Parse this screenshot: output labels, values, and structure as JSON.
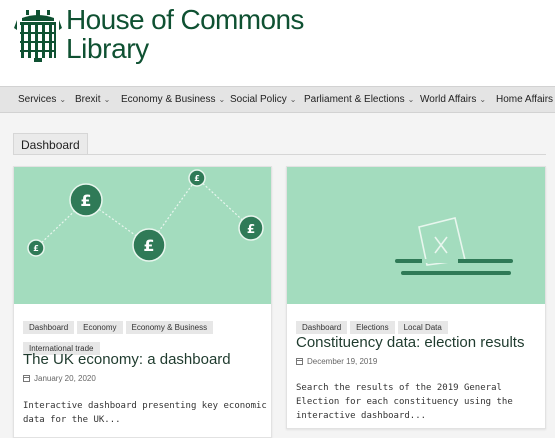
{
  "header": {
    "logo_line1": "House of Commons",
    "logo_line2": "Library",
    "brand_color": "#0f5132"
  },
  "nav": {
    "items": [
      "Services",
      "Brexit",
      "Economy & Business",
      "Social Policy",
      "Parliament & Elections",
      "World Affairs",
      "Home Affairs"
    ]
  },
  "section_tag": "Dashboard",
  "cards": [
    {
      "image_icon": "line-chart-pound-icon",
      "tags": [
        "Dashboard",
        "Economy",
        "Economy & Business",
        "International trade"
      ],
      "title": "The UK economy: a dashboard",
      "date": "January 20, 2020",
      "description": "Interactive dashboard presenting key economic data for the UK..."
    },
    {
      "image_icon": "ballot-box-icon",
      "tags": [
        "Dashboard",
        "Elections",
        "Local Data"
      ],
      "title": "Constituency data: election results",
      "date": "December 19, 2019",
      "description": "Search the results of the 2019 General Election for each constituency using the interactive dashboard..."
    }
  ],
  "colors": {
    "card_image_bg": "#a3dcbe",
    "icon_green": "#2f7a57"
  }
}
